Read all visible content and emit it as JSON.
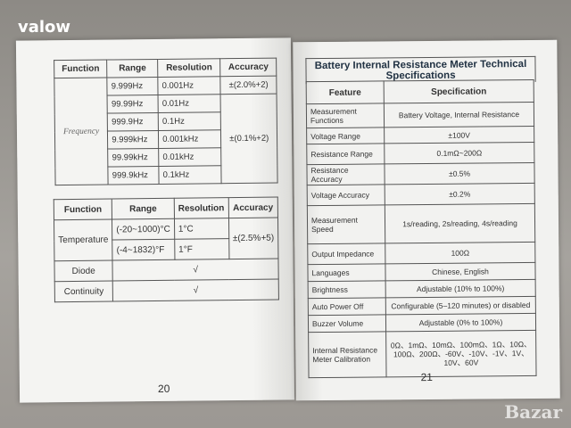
{
  "watermark": "valow",
  "watermark_logo": "Bazar",
  "left_page": {
    "page_number": "20",
    "freq_table": {
      "headers": [
        "Function",
        "Range",
        "Resolution",
        "Accuracy"
      ],
      "function": "Frequency",
      "rows": [
        [
          "9.999Hz",
          "0.001Hz"
        ],
        [
          "99.99Hz",
          "0.01Hz"
        ],
        [
          "999.9Hz",
          "0.1Hz"
        ],
        [
          "9.999kHz",
          "0.001kHz"
        ],
        [
          "99.99kHz",
          "0.01kHz"
        ],
        [
          "999.9kHz",
          "0.1kHz"
        ]
      ],
      "accuracy": [
        "±(2.0%+2)",
        "±(0.1%+2)"
      ]
    },
    "temp_table": {
      "headers": [
        "Function",
        "Range",
        "Resolution",
        "Accuracy"
      ],
      "temperature": {
        "label": "Temperature",
        "ranges": [
          "(-20~1000)°C",
          "(-4~1832)°F"
        ],
        "resolutions": [
          "1°C",
          "1°F"
        ],
        "accuracy": "±(2.5%+5)"
      },
      "diode": {
        "label": "Diode",
        "value": "√"
      },
      "continuity": {
        "label": "Continuity",
        "value": "√"
      }
    }
  },
  "right_page": {
    "page_number": "21",
    "title": "Battery Internal Resistance Meter Technical Specifications",
    "headers": [
      "Feature",
      "Specification"
    ],
    "rows": [
      [
        "Measurement Functions",
        "Battery Voltage, Internal Resistance"
      ],
      [
        "Voltage Range",
        "±100V"
      ],
      [
        "Resistance Range",
        "0.1mΩ~200Ω"
      ],
      [
        "Resistance Accuracy",
        "±0.5%"
      ],
      [
        "Voltage Accuracy",
        "±0.2%"
      ],
      [
        "Measurement Speed",
        "1s/reading, 2s/reading, 4s/reading"
      ],
      [
        "Output Impedance",
        "100Ω"
      ],
      [
        "Languages",
        "Chinese, English"
      ],
      [
        "Brightness",
        "Adjustable (10% to 100%)"
      ],
      [
        "Auto Power Off",
        "Configurable (5–120 minutes) or disabled"
      ],
      [
        "Buzzer Volume",
        "Adjustable (0% to 100%)"
      ],
      [
        "Internal Resistance Meter Calibration",
        "0Ω、1mΩ、10mΩ、100mΩ、1Ω、10Ω、100Ω、200Ω、-60V、-10V、-1V、1V、10V、60V"
      ]
    ]
  }
}
